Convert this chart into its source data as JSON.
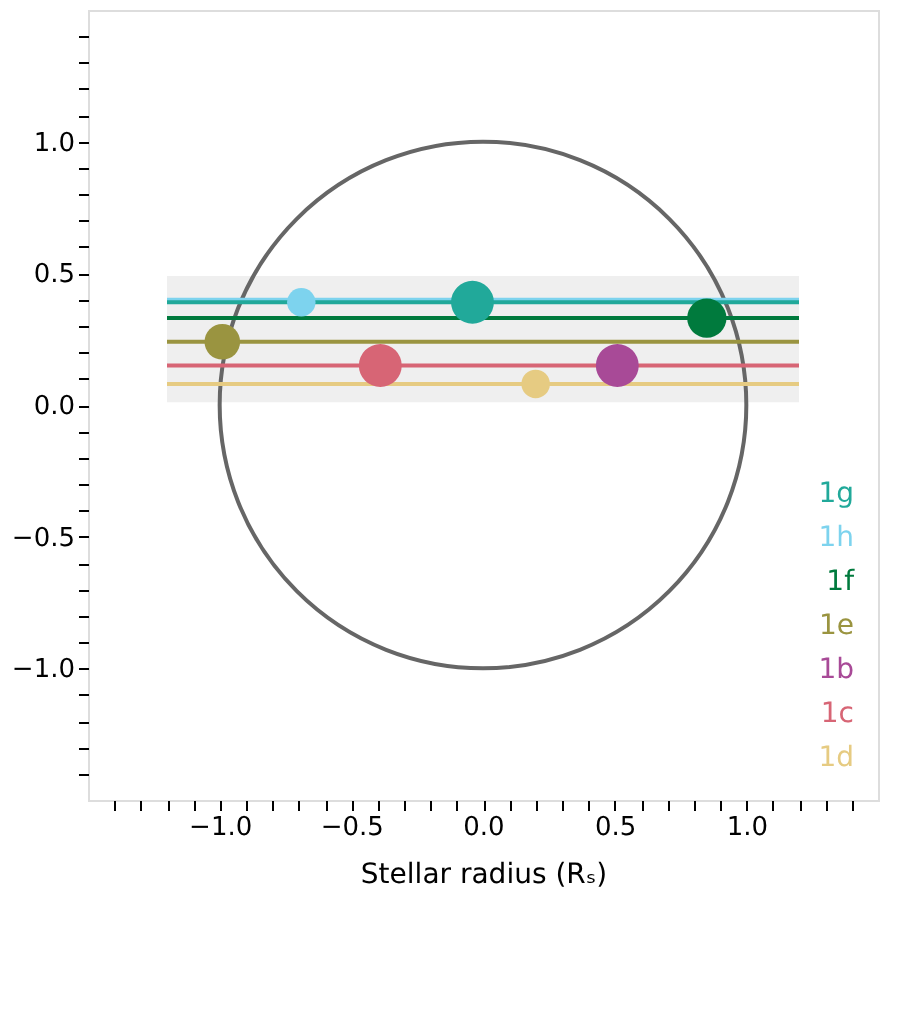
{
  "chart_data": {
    "type": "bubble",
    "xlabel": "Stellar radius (Rₛ)",
    "xlim": [
      -1.5,
      1.5
    ],
    "ylim": [
      -1.5,
      1.5
    ],
    "xticks": [
      {
        "value": -1.4,
        "label": null
      },
      {
        "value": -1.3,
        "label": null
      },
      {
        "value": -1.2,
        "label": null
      },
      {
        "value": -1.1,
        "label": null
      },
      {
        "value": -1.0,
        "label": "−1.0"
      },
      {
        "value": -0.9,
        "label": null
      },
      {
        "value": -0.8,
        "label": null
      },
      {
        "value": -0.7,
        "label": null
      },
      {
        "value": -0.6,
        "label": null
      },
      {
        "value": -0.5,
        "label": "−0.5"
      },
      {
        "value": -0.4,
        "label": null
      },
      {
        "value": -0.3,
        "label": null
      },
      {
        "value": -0.2,
        "label": null
      },
      {
        "value": -0.1,
        "label": null
      },
      {
        "value": 0.0,
        "label": "0.0"
      },
      {
        "value": 0.1,
        "label": null
      },
      {
        "value": 0.2,
        "label": null
      },
      {
        "value": 0.3,
        "label": null
      },
      {
        "value": 0.4,
        "label": null
      },
      {
        "value": 0.5,
        "label": "0.5"
      },
      {
        "value": 0.6,
        "label": null
      },
      {
        "value": 0.7,
        "label": null
      },
      {
        "value": 0.8,
        "label": null
      },
      {
        "value": 0.9,
        "label": null
      },
      {
        "value": 1.0,
        "label": "1.0"
      },
      {
        "value": 1.1,
        "label": null
      },
      {
        "value": 1.2,
        "label": null
      },
      {
        "value": 1.3,
        "label": null
      },
      {
        "value": 1.4,
        "label": null
      }
    ],
    "yticks": [
      {
        "value": -1.4,
        "label": null
      },
      {
        "value": -1.3,
        "label": null
      },
      {
        "value": -1.2,
        "label": null
      },
      {
        "value": -1.1,
        "label": null
      },
      {
        "value": -1.0,
        "label": "−1.0"
      },
      {
        "value": -0.9,
        "label": null
      },
      {
        "value": -0.8,
        "label": null
      },
      {
        "value": -0.7,
        "label": null
      },
      {
        "value": -0.6,
        "label": null
      },
      {
        "value": -0.5,
        "label": "−0.5"
      },
      {
        "value": -0.4,
        "label": null
      },
      {
        "value": -0.3,
        "label": null
      },
      {
        "value": -0.2,
        "label": null
      },
      {
        "value": -0.1,
        "label": null
      },
      {
        "value": 0.0,
        "label": "0.0"
      },
      {
        "value": 0.1,
        "label": null
      },
      {
        "value": 0.2,
        "label": null
      },
      {
        "value": 0.3,
        "label": null
      },
      {
        "value": 0.4,
        "label": null
      },
      {
        "value": 0.5,
        "label": "0.5"
      },
      {
        "value": 0.6,
        "label": null
      },
      {
        "value": 0.7,
        "label": null
      },
      {
        "value": 0.8,
        "label": null
      },
      {
        "value": 0.9,
        "label": null
      },
      {
        "value": 1.0,
        "label": "1.0"
      },
      {
        "value": 1.1,
        "label": null
      },
      {
        "value": 1.2,
        "label": null
      },
      {
        "value": 1.3,
        "label": null
      },
      {
        "value": 1.4,
        "label": null
      }
    ],
    "bands": [
      {
        "axis": "y",
        "from": 0.01,
        "to": 0.49,
        "color": "#efefef"
      }
    ],
    "grid": false,
    "legend": "bottom right",
    "marker": "circle",
    "series": [
      {
        "type": "line",
        "marker": "none",
        "color": "#7dd3ee",
        "x": [
          -1.2,
          1.2
        ],
        "values": [
          0.4,
          0.4
        ]
      },
      {
        "type": "line",
        "marker": "none",
        "color": "#21a99a",
        "x": [
          -1.2,
          1.2
        ],
        "values": [
          0.39,
          0.39
        ]
      },
      {
        "type": "line",
        "marker": "none",
        "color": "#007a3d",
        "x": [
          -1.2,
          1.2
        ],
        "values": [
          0.33,
          0.33
        ]
      },
      {
        "type": "line",
        "marker": "none",
        "color": "#9a9440",
        "x": [
          -1.2,
          1.2
        ],
        "values": [
          0.24,
          0.24
        ]
      },
      {
        "type": "line",
        "marker": "none",
        "color": "#d76575",
        "x": [
          -1.2,
          1.2
        ],
        "values": [
          0.15,
          0.15
        ]
      },
      {
        "type": "line",
        "marker": "none",
        "color": "#e6cb82",
        "x": [
          -1.2,
          1.2
        ],
        "values": [
          0.08,
          0.08
        ]
      },
      {
        "name": "1g",
        "color": "#21a99a",
        "x": [
          -0.04
        ],
        "values": [
          0.39
        ],
        "sizes": [
          1.0
        ]
      },
      {
        "name": "1h",
        "color": "#7dd3ee",
        "x": [
          -0.69
        ],
        "values": [
          0.39
        ],
        "sizes": [
          0.44
        ]
      },
      {
        "name": "1f",
        "color": "#007a3d",
        "x": [
          0.85
        ],
        "values": [
          0.33
        ],
        "sizes": [
          0.84
        ]
      },
      {
        "name": "1e",
        "color": "#9a9440",
        "x": [
          -0.99
        ],
        "values": [
          0.24
        ],
        "sizes": [
          0.69
        ]
      },
      {
        "name": "1b",
        "color": "#a84a97",
        "x": [
          0.51
        ],
        "values": [
          0.15
        ],
        "sizes": [
          1.0
        ]
      },
      {
        "name": "1c",
        "color": "#d76575",
        "x": [
          -0.39
        ],
        "values": [
          0.15
        ],
        "sizes": [
          1.0
        ]
      },
      {
        "name": "1d",
        "color": "#e6cb82",
        "x": [
          0.2
        ],
        "values": [
          0.08
        ],
        "sizes": [
          0.44
        ]
      }
    ]
  }
}
